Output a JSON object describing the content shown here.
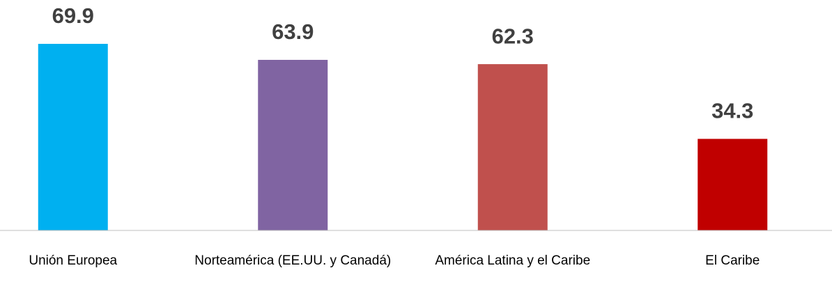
{
  "chart_data": {
    "type": "bar",
    "categories": [
      "Unión Europea",
      "Norteamérica (EE.UU. y Canadá)",
      "América Latina y el Caribe",
      "El Caribe"
    ],
    "values": [
      69.9,
      63.9,
      62.3,
      34.3
    ],
    "colors": [
      "#00b0f0",
      "#8064a2",
      "#c0504d",
      "#c00000"
    ],
    "ylim": [
      0,
      70
    ]
  }
}
